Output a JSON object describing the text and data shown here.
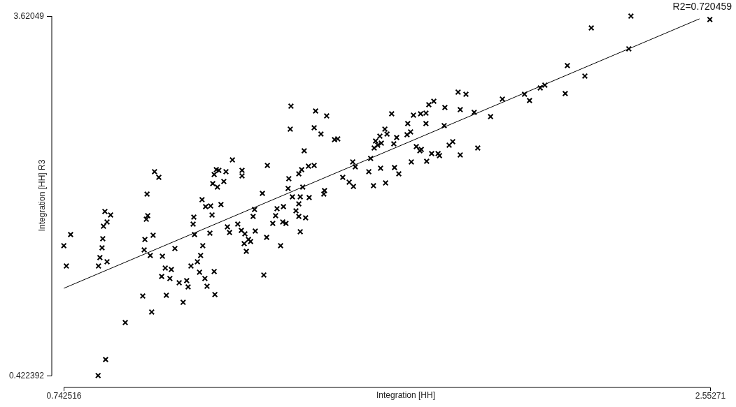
{
  "chart_data": {
    "type": "scatter",
    "xlabel": "Integration [HH]",
    "ylabel": "Integration [HH] R3",
    "xlim": [
      0.742516,
      2.55271
    ],
    "ylim": [
      0.422392,
      3.62049
    ],
    "xticks": [
      0.742516,
      2.55271
    ],
    "yticks": [
      0.422392,
      3.62049
    ],
    "annotations": [
      "R2=0.720459"
    ],
    "series": [
      {
        "marker": "cross",
        "color": "#000000",
        "x": [
          0.743,
          0.75,
          0.762,
          0.839,
          0.86,
          0.915,
          0.84,
          0.844,
          0.85,
          0.852,
          0.854,
          0.858,
          0.864,
          0.864,
          0.874,
          0.964,
          0.968,
          0.97,
          0.974,
          0.976,
          0.978,
          0.985,
          0.989,
          0.993,
          0.997,
          1.009,
          1.019,
          1.017,
          1.027,
          1.03,
          1.04,
          1.044,
          1.054,
          1.066,
          1.077,
          1.087,
          1.091,
          1.099,
          1.105,
          1.107,
          1.109,
          1.117,
          1.123,
          1.126,
          1.13,
          1.132,
          1.138,
          1.14,
          1.144,
          1.152,
          1.154,
          1.158,
          1.16,
          1.164,
          1.164,
          1.166,
          1.17,
          1.173,
          1.183,
          1.177,
          1.191,
          1.197,
          1.215,
          1.242,
          1.242,
          1.201,
          1.207,
          1.23,
          1.24,
          1.248,
          1.25,
          1.254,
          1.26,
          1.266,
          1.273,
          1.277,
          1.279,
          1.299,
          1.303,
          1.313,
          1.311,
          1.328,
          1.336,
          1.34,
          1.35,
          1.356,
          1.358,
          1.365,
          1.371,
          1.373,
          1.377,
          1.379,
          1.383,
          1.393,
          1.401,
          1.401,
          1.401,
          1.405,
          1.405,
          1.409,
          1.412,
          1.416,
          1.42,
          1.428,
          1.43,
          1.444,
          1.444,
          1.448,
          1.463,
          1.471,
          1.473,
          1.479,
          1.501,
          1.51,
          1.524,
          1.542,
          1.552,
          1.554,
          1.559,
          1.597,
          1.602,
          1.61,
          1.612,
          1.616,
          1.622,
          1.628,
          1.632,
          1.63,
          1.642,
          1.648,
          1.644,
          1.661,
          1.667,
          1.669,
          1.675,
          1.681,
          1.704,
          1.706,
          1.714,
          1.716,
          1.722,
          1.73,
          1.74,
          1.742,
          1.744,
          1.757,
          1.757,
          1.759,
          1.765,
          1.773,
          1.779,
          1.791,
          1.795,
          1.808,
          1.81,
          1.822,
          1.832,
          1.847,
          1.853,
          1.853,
          1.869,
          1.892,
          1.902,
          1.938,
          1.971,
          2.033,
          2.047,
          2.077,
          2.09,
          2.147,
          2.153,
          2.202,
          2.22,
          2.325,
          2.331,
          2.552
        ],
        "values": [
          1.578,
          1.397,
          1.677,
          0.423,
          0.565,
          0.894,
          1.397,
          1.472,
          1.559,
          1.64,
          1.751,
          1.882,
          1.789,
          1.435,
          1.851,
          1.13,
          1.54,
          1.633,
          1.813,
          2.037,
          1.845,
          1.491,
          0.988,
          1.671,
          2.236,
          2.186,
          1.484,
          1.304,
          1.379,
          1.137,
          1.286,
          1.366,
          1.553,
          1.248,
          1.074,
          1.267,
          1.211,
          1.397,
          1.77,
          1.832,
          1.677,
          1.435,
          1.342,
          1.491,
          1.987,
          1.578,
          1.286,
          1.925,
          1.217,
          1.689,
          1.931,
          1.851,
          2.13,
          1.348,
          2.211,
          1.143,
          2.254,
          2.099,
          1.944,
          2.248,
          2.149,
          2.236,
          2.341,
          2.248,
          2.199,
          1.745,
          1.695,
          1.77,
          1.714,
          1.596,
          1.683,
          1.528,
          1.633,
          1.615,
          1.838,
          1.9,
          1.708,
          2.043,
          1.317,
          2.292,
          1.652,
          1.776,
          1.845,
          1.907,
          1.578,
          1.789,
          1.925,
          1.776,
          2.087,
          2.174,
          2.615,
          2.819,
          2.012,
          1.888,
          2.217,
          1.95,
          1.838,
          2.012,
          1.702,
          2.254,
          2.099,
          2.422,
          1.826,
          2.285,
          2.006,
          2.627,
          2.292,
          2.776,
          2.571,
          2.037,
          2.068,
          2.732,
          2.521,
          2.528,
          2.186,
          2.143,
          2.323,
          2.105,
          2.279,
          2.236,
          2.354,
          2.111,
          2.447,
          2.509,
          2.472,
          2.552,
          2.49,
          2.267,
          2.615,
          2.571,
          2.136,
          2.751,
          2.484,
          2.273,
          2.54,
          2.217,
          2.565,
          2.664,
          2.59,
          2.323,
          2.739,
          2.459,
          2.422,
          2.751,
          2.434,
          2.664,
          2.757,
          2.329,
          2.832,
          2.397,
          2.863,
          2.397,
          2.379,
          2.646,
          2.807,
          2.472,
          2.503,
          2.944,
          2.788,
          2.385,
          2.925,
          2.764,
          2.447,
          2.726,
          2.882,
          2.925,
          2.869,
          2.981,
          3.006,
          2.931,
          3.18,
          3.087,
          3.515,
          3.329,
          3.62,
          3.59
        ]
      },
      {
        "type": "line",
        "color": "#000000",
        "x": [
          0.743,
          2.523
        ],
        "values": [
          1.199,
          3.596
        ]
      }
    ]
  }
}
